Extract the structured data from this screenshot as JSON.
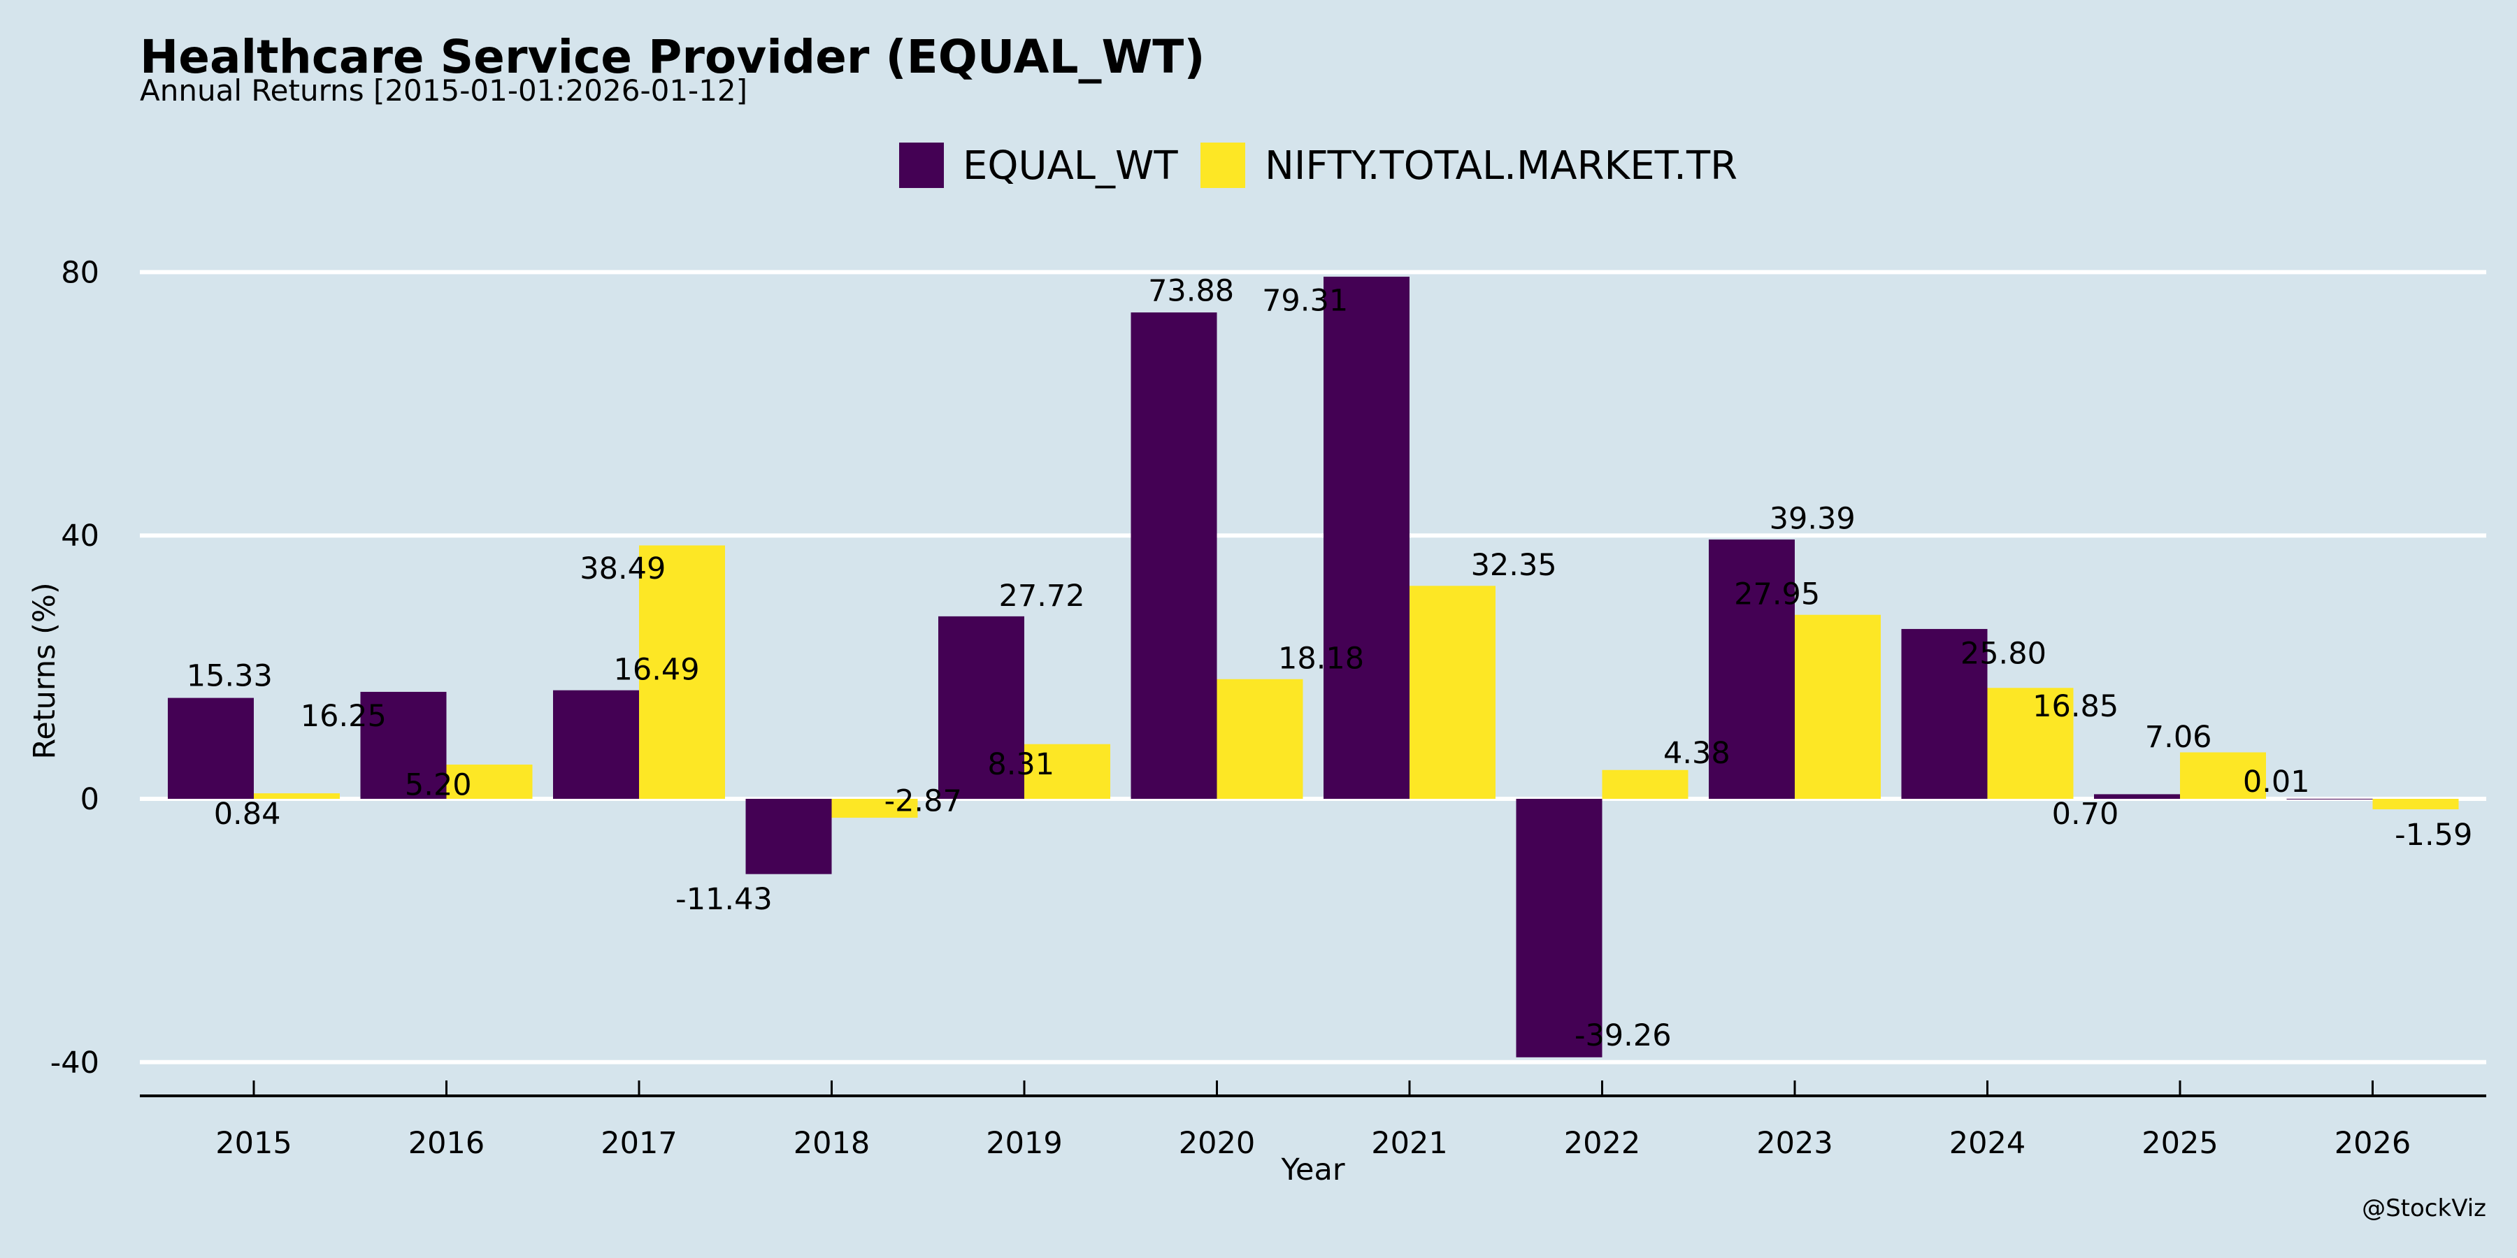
{
  "chart_data": {
    "type": "bar",
    "title": "Healthcare Service Provider (EQUAL_WT)",
    "subtitle": "Annual Returns [2015-01-01:2026-01-12]",
    "xlabel": "Year",
    "ylabel": "Returns (%)",
    "categories": [
      "2015",
      "2016",
      "2017",
      "2018",
      "2019",
      "2020",
      "2021",
      "2022",
      "2023",
      "2024",
      "2025",
      "2026"
    ],
    "series": [
      {
        "name": "EQUAL_WT",
        "color": "#440154",
        "values": [
          15.33,
          16.25,
          16.49,
          -11.43,
          27.72,
          73.88,
          79.31,
          -39.26,
          39.39,
          25.8,
          0.7,
          0.01
        ],
        "labels": [
          "15.33",
          "16.25",
          "16.49",
          "-11.43",
          "27.72",
          "73.88",
          "79.31",
          "-39.26",
          "39.39",
          "25.80",
          "0.70",
          "0.01"
        ]
      },
      {
        "name": "NIFTY.TOTAL.MARKET.TR",
        "color": "#fde725",
        "values": [
          0.84,
          5.2,
          38.49,
          -2.87,
          8.31,
          18.18,
          32.35,
          4.38,
          27.95,
          16.85,
          7.06,
          -1.59
        ],
        "labels": [
          "0.84",
          "5.20",
          "38.49",
          "-2.87",
          "8.31",
          "18.18",
          "32.35",
          "4.38",
          "27.95",
          "16.85",
          "7.06",
          "-1.59"
        ]
      }
    ],
    "yticks": [
      -40,
      0,
      40,
      80
    ],
    "ytick_labels": [
      "-40",
      "0",
      "40",
      "80"
    ],
    "ylim": [
      -45,
      90
    ],
    "grid": true,
    "legend_position": "top-center",
    "credit": "@StockViz",
    "background_color": "#d5e4ec"
  }
}
